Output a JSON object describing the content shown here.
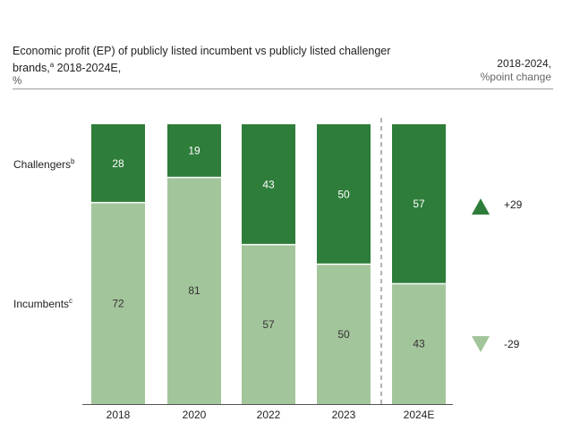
{
  "title": "Economic profit (EP) of publicly listed incumbent vs publicly listed challenger",
  "title_line2": "brands,",
  "title_footnote": "a",
  "title_line2_rest": " 2018-2024E,",
  "unit": "%",
  "change_header": {
    "line1": "2018-2024,",
    "line2": "%point change"
  },
  "colors": {
    "challengers": "#2e7d3a",
    "incumbents": "#a3c59b",
    "up_marker": "#2e7d3a",
    "down_marker": "#a3c59b"
  },
  "chart_data": {
    "type": "bar",
    "stacked": true,
    "categories": [
      "2018",
      "2020",
      "2022",
      "2023",
      "2024E"
    ],
    "series": [
      {
        "name": "Incumbents",
        "footnote": "c",
        "values": [
          72,
          81,
          57,
          50,
          43
        ]
      },
      {
        "name": "Challengers",
        "footnote": "b",
        "values": [
          28,
          19,
          43,
          50,
          57
        ]
      }
    ],
    "ylim": [
      0,
      100
    ],
    "changes": [
      {
        "series": "Challengers",
        "direction": "up",
        "label": "+29"
      },
      {
        "series": "Incumbents",
        "direction": "down",
        "label": "-29"
      }
    ],
    "estimate_divider_before": "2024E"
  }
}
